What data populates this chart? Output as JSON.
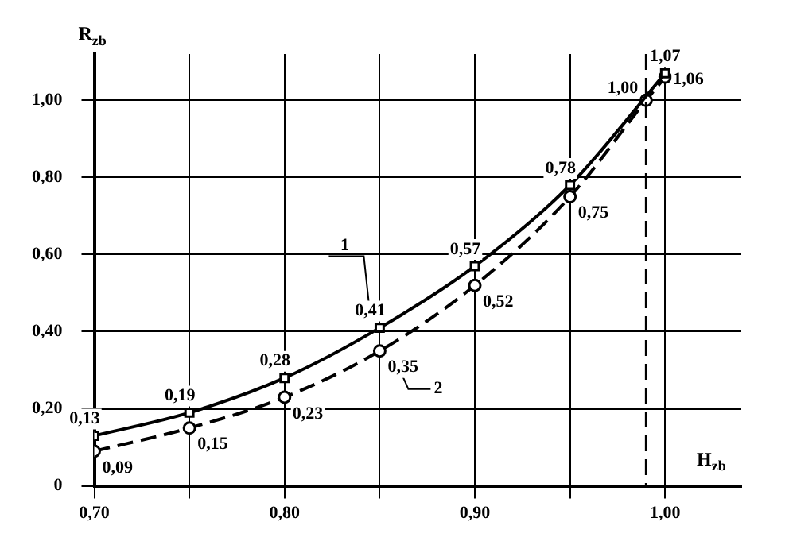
{
  "chart_data": {
    "type": "line",
    "xlabel": "H$_{zb}$",
    "ylabel": "R$_{zb}$",
    "xlim": [
      0.7,
      1.04
    ],
    "ylim": [
      0,
      1.12
    ],
    "xticks": [
      {
        "value": 0.7,
        "label": "0,70"
      },
      {
        "value": 0.75,
        "label": null
      },
      {
        "value": 0.8,
        "label": "0,80"
      },
      {
        "value": 0.85,
        "label": null
      },
      {
        "value": 0.9,
        "label": "0,90"
      },
      {
        "value": 0.95,
        "label": null
      },
      {
        "value": 1.0,
        "label": "1,00"
      }
    ],
    "yticks": [
      {
        "value": 0,
        "label": "0"
      },
      {
        "value": 0.2,
        "label": "0,20"
      },
      {
        "value": 0.4,
        "label": "0,40"
      },
      {
        "value": 0.6,
        "label": "0,60"
      },
      {
        "value": 0.8,
        "label": "0,80"
      },
      {
        "value": 1.0,
        "label": "1,00"
      }
    ],
    "grid": true,
    "legend": false,
    "ref_lines": [
      {
        "axis": "x",
        "value": 0.99,
        "line_style": "dashed"
      }
    ],
    "series": [
      {
        "name": "1",
        "color": "#000000",
        "marker": "square",
        "line_style": "solid",
        "x": [
          0.7,
          0.75,
          0.8,
          0.85,
          0.9,
          0.95,
          1.0
        ],
        "values": [
          0.13,
          0.19,
          0.28,
          0.41,
          0.57,
          0.78,
          1.07
        ],
        "value_labels": [
          "0,13",
          "0,19",
          "0,28",
          "0,41",
          "0,57",
          "0,78",
          "1,07"
        ]
      },
      {
        "name": "2",
        "color": "#000000",
        "marker": "circle",
        "line_style": "dashed",
        "x": [
          0.7,
          0.75,
          0.8,
          0.85,
          0.9,
          0.95,
          0.99,
          1.0
        ],
        "values": [
          0.09,
          0.15,
          0.23,
          0.35,
          0.52,
          0.75,
          1.0,
          1.06
        ],
        "value_labels": [
          "0,09",
          "0,15",
          "0,23",
          "0,35",
          "0,52",
          "0,75",
          "1,00",
          "1,06"
        ]
      }
    ]
  }
}
